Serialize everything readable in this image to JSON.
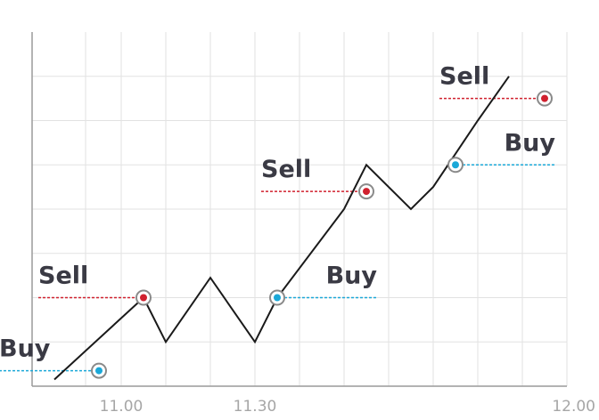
{
  "colors": {
    "background": "#ffffff",
    "grid": "#e2e2e2",
    "axis": "#9a9a9a",
    "price_line": "#1a1a1a",
    "sell": "#d0202e",
    "buy": "#1ba8d8",
    "label_text": "#3a3a44",
    "tick_text": "#a6a6a6"
  },
  "chart_data": {
    "type": "line",
    "title": "",
    "xlabel": "",
    "ylabel": "",
    "x_ticks": [
      "11.00",
      "11.30",
      "12.00"
    ],
    "grid": true,
    "series": [
      {
        "points": [
          [
            10.85,
            0.15
          ],
          [
            11.05,
            2.0
          ],
          [
            11.1,
            1.0
          ],
          [
            11.2,
            2.45
          ],
          [
            11.3,
            1.0
          ],
          [
            11.35,
            2.0
          ],
          [
            11.5,
            4.0
          ],
          [
            11.55,
            5.0
          ],
          [
            11.65,
            4.0
          ],
          [
            11.7,
            4.5
          ],
          [
            11.8,
            6.0
          ],
          [
            11.87,
            7.0
          ]
        ]
      }
    ],
    "annotations": [
      {
        "label": "Buy",
        "type": "buy",
        "x": 10.95,
        "y": 0.35,
        "side": "left"
      },
      {
        "label": "Sell",
        "type": "sell",
        "x": 11.05,
        "y": 2.0,
        "side": "left"
      },
      {
        "label": "Buy",
        "type": "buy",
        "x": 11.35,
        "y": 2.0,
        "side": "right"
      },
      {
        "label": "Sell",
        "type": "sell",
        "x": 11.55,
        "y": 4.4,
        "side": "left"
      },
      {
        "label": "Buy",
        "type": "buy",
        "x": 11.75,
        "y": 5.0,
        "side": "right"
      },
      {
        "label": "Sell",
        "type": "sell",
        "x": 11.95,
        "y": 6.5,
        "side": "left"
      }
    ]
  }
}
